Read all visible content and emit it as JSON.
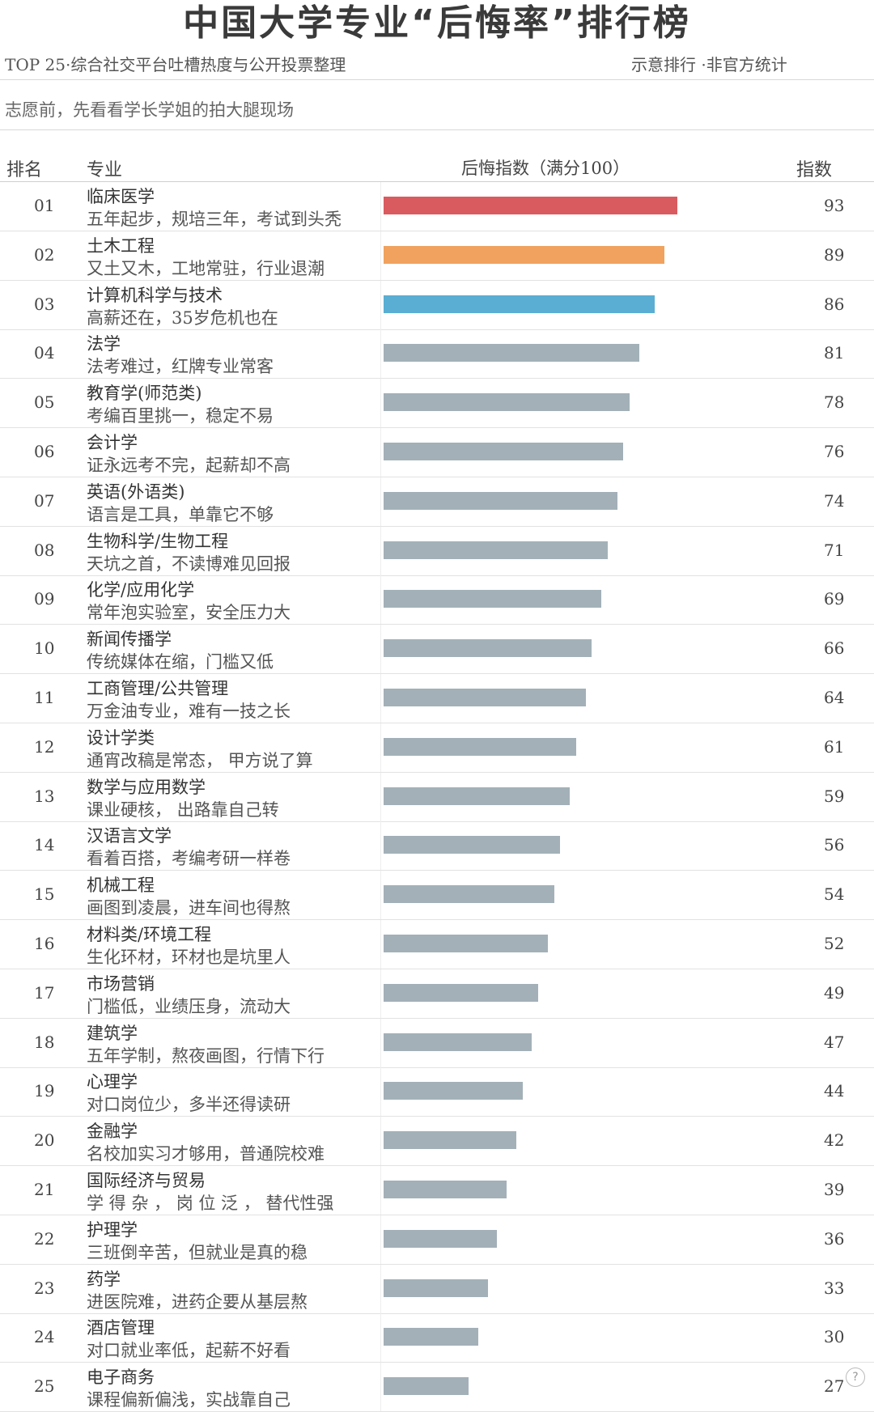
{
  "page": {
    "title": "中国大学专业“后悔率”排行榜",
    "subtitle_left": "TOP  25·综合社交平台吐槽热度与公开投票整理",
    "subtitle_right": "示意排行 ·非官方统计",
    "note": "志愿前，先看看学长学姐的拍大腿现场",
    "headers": {
      "rank": "排名",
      "major": "专业",
      "index": "后悔指数（满分100）",
      "value": "指数"
    }
  },
  "chart_data": {
    "type": "bar",
    "orientation": "horizontal",
    "xlim": [
      0,
      100
    ],
    "title": "中国大学专业“后悔率”排行榜",
    "xlabel": "后悔指数（满分100）",
    "colors": {
      "rank1": "#d95b60",
      "rank2": "#f0a25e",
      "rank3": "#5aaed3",
      "others": "#a3b0b8"
    },
    "rows": [
      {
        "rank": "01",
        "major": "临床医学",
        "desc": "五年起步，规培三年，考试到头秃",
        "value": 93
      },
      {
        "rank": "02",
        "major": "土木工程",
        "desc": "又土又木，工地常驻，行业退潮",
        "value": 89
      },
      {
        "rank": "03",
        "major": "计算机科学与技术",
        "desc": "高薪还在，35岁危机也在",
        "value": 86
      },
      {
        "rank": "04",
        "major": "法学",
        "desc": "法考难过，红牌专业常客",
        "value": 81
      },
      {
        "rank": "05",
        "major": "教育学(师范类)",
        "desc": "考编百里挑一，稳定不易",
        "value": 78
      },
      {
        "rank": "06",
        "major": "会计学",
        "desc": "证永远考不完，起薪却不高",
        "value": 76
      },
      {
        "rank": "07",
        "major": "英语(外语类)",
        "desc": "语言是工具，单靠它不够",
        "value": 74
      },
      {
        "rank": "08",
        "major": "生物科学/生物工程",
        "desc": "天坑之首，不读博难见回报",
        "value": 71
      },
      {
        "rank": "09",
        "major": "化学/应用化学",
        "desc": "常年泡实验室，安全压力大",
        "value": 69
      },
      {
        "rank": "10",
        "major": "新闻传播学",
        "desc": "传统媒体在缩，门槛又低",
        "value": 66
      },
      {
        "rank": "11",
        "major": "工商管理/公共管理",
        "desc": "万金油专业，难有一技之长",
        "value": 64
      },
      {
        "rank": "12",
        "major": "设计学类",
        "desc": "通宵改稿是常态， 甲方说了算",
        "value": 61
      },
      {
        "rank": "13",
        "major": "数学与应用数学",
        "desc": "课业硬核， 出路靠自己转",
        "value": 59
      },
      {
        "rank": "14",
        "major": "汉语言文学",
        "desc": "看着百搭，考编考研一样卷",
        "value": 56
      },
      {
        "rank": "15",
        "major": "机械工程",
        "desc": "画图到凌晨，进车间也得熬",
        "value": 54
      },
      {
        "rank": "16",
        "major": "材料类/环境工程",
        "desc": "生化环材，环材也是坑里人",
        "value": 52
      },
      {
        "rank": "17",
        "major": "市场营销",
        "desc": "门槛低，业绩压身，流动大",
        "value": 49
      },
      {
        "rank": "18",
        "major": "建筑学",
        "desc": "五年学制，熬夜画图，行情下行",
        "value": 47
      },
      {
        "rank": "19",
        "major": "心理学",
        "desc": "对口岗位少，多半还得读研",
        "value": 44
      },
      {
        "rank": "20",
        "major": "金融学",
        "desc": "名校加实习才够用，普通院校难",
        "value": 42
      },
      {
        "rank": "21",
        "major": "国际经济与贸易",
        "desc": "学 得 杂 ， 岗 位 泛 ， 替代性强",
        "value": 39
      },
      {
        "rank": "22",
        "major": "护理学",
        "desc": "三班倒辛苦，但就业是真的稳",
        "value": 36
      },
      {
        "rank": "23",
        "major": "药学",
        "desc": "进医院难，进药企要从基层熬",
        "value": 33
      },
      {
        "rank": "24",
        "major": "酒店管理",
        "desc": "对口就业率低，起薪不好看",
        "value": 30
      },
      {
        "rank": "25",
        "major": "电子商务",
        "desc": "课程偏新偏浅，实战靠自己",
        "value": 27
      }
    ]
  }
}
